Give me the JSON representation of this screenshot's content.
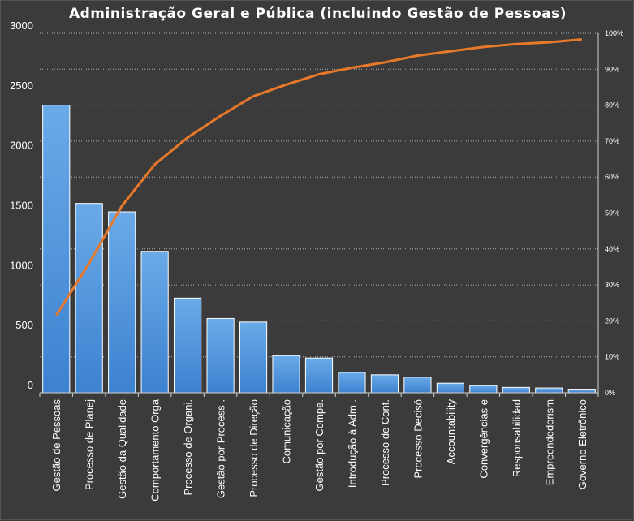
{
  "chart_data": {
    "type": "bar",
    "title": "Administração  Geral  e Pública  (incluindo Gestão  de Pessoas)",
    "categories": [
      "Gestão de Pessoas",
      "Processo de Planej",
      "Gestão da Qualidade",
      "Comportamento  Orga",
      "Processo de Organi.",
      "Gestão por Process .",
      "Processo de Direção",
      "Comunicação",
      "Gestão por Compe.",
      "Introdução à Adm .",
      "Processo de Cont.",
      "Processo Decisó",
      "Accountability",
      "Convergências e",
      "Responsabilidad",
      "Empreendedorism",
      "Governo Eletrônico"
    ],
    "series": [
      {
        "type": "bar",
        "values": [
          2400,
          1580,
          1510,
          1180,
          790,
          620,
          590,
          310,
          290,
          170,
          150,
          130,
          80,
          60,
          45,
          40,
          30
        ]
      },
      {
        "type": "line",
        "axis": "right",
        "values": [
          21.5,
          36,
          52,
          63.5,
          71,
          77,
          82.5,
          85.7,
          88.6,
          90.4,
          91.9,
          93.8,
          95,
          96.2,
          97,
          97.5,
          98.3
        ]
      }
    ],
    "y_left": {
      "ylim": [
        0,
        3000
      ],
      "ticks": [
        "0",
        "500",
        "1000",
        "1500",
        "2000",
        "2500",
        "3000"
      ]
    },
    "y_right": {
      "ylim": [
        0,
        100
      ],
      "ticks": [
        "0%",
        "10%",
        "20%",
        "30%",
        "40%",
        "50%",
        "60%",
        "70%",
        "80%",
        "90%",
        "100%"
      ]
    },
    "grid": true,
    "colors": {
      "bar": "#4a90d9",
      "line": "#e8782a",
      "background": "#3b3b3b",
      "grid": "#cfcfcf",
      "text": "#ffffff"
    }
  }
}
